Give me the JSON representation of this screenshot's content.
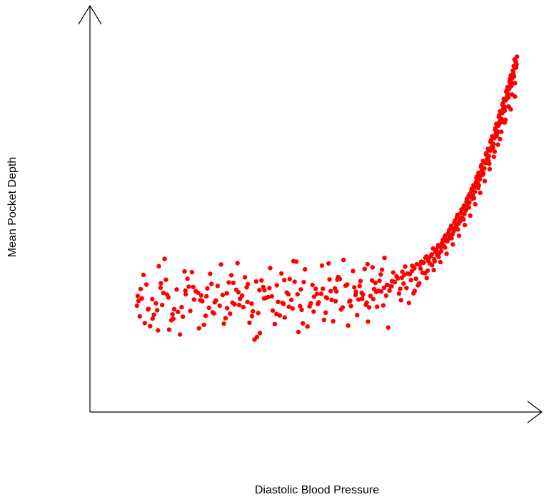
{
  "chart_data": {
    "type": "scatter",
    "title": "",
    "xlabel": "Diastolic Blood Pressure",
    "ylabel": "Mean Pocket Depth",
    "xlim": [
      0,
      100
    ],
    "ylim": [
      0,
      100
    ],
    "grid": false,
    "point_color": "#ff0000",
    "axis_color": "#000000",
    "series": [
      {
        "name": "",
        "x": [
          7.2,
          9.5,
          12.1,
          14.8,
          18.3,
          21.4,
          24.6,
          27.9,
          30.3,
          33.7,
          36.5,
          39.8,
          42.6,
          45.3,
          48.9,
          51.7,
          54.2,
          57.6,
          60.1,
          62.5,
          64.8,
          67.4,
          69.9,
          72.3,
          74.6,
          76.8,
          78.5,
          80.1,
          81.6,
          83.2,
          84.7,
          86.1,
          87.4,
          88.6,
          89.8,
          90.9,
          92.1,
          93.2,
          94.1,
          95.0,
          96.0,
          96.9,
          97.6,
          98.3,
          8.1,
          11.3,
          13.6,
          16.2,
          19.7,
          23.0,
          25.8,
          29.4,
          32.1,
          35.2,
          38.0,
          41.3,
          44.1,
          47.0,
          50.4,
          53.1,
          55.8,
          58.9,
          61.2,
          63.6,
          66.1,
          68.5,
          71.0,
          73.4,
          75.7,
          77.6,
          79.3,
          80.9,
          82.4,
          83.9,
          85.4,
          86.8,
          88.0,
          89.2,
          90.3,
          91.5,
          92.6,
          93.7,
          94.6,
          95.5,
          96.4,
          97.2,
          98.0,
          98.7,
          7.6,
          10.4,
          12.9,
          15.5,
          19.0,
          22.2,
          25.2,
          28.6,
          31.2,
          34.4,
          37.3,
          40.5,
          43.4,
          46.2,
          49.6,
          52.4,
          55.0,
          58.2,
          60.7,
          63.0,
          65.5,
          67.9,
          70.5,
          72.9,
          75.1,
          77.2,
          78.9,
          80.5,
          82.0,
          83.5,
          85.0,
          86.4,
          87.7,
          88.9,
          90.1,
          91.2,
          92.4,
          93.4,
          94.4,
          95.2,
          96.2,
          97.0,
          97.8,
          98.5,
          8.8,
          11.8,
          14.2,
          17.1,
          20.5,
          23.8,
          26.7,
          30.0,
          32.9,
          36.0,
          38.9,
          42.1,
          44.8,
          47.8,
          51.1,
          53.7,
          56.5,
          59.4,
          61.8,
          64.1,
          66.7,
          69.1,
          71.6,
          74.0,
          76.2,
          78.0,
          79.7,
          81.3,
          82.8,
          84.3,
          85.8,
          87.1,
          88.3,
          89.5,
          90.6,
          91.8,
          92.9,
          93.9,
          94.8,
          95.7,
          96.6,
          97.4,
          98.1,
          98.9,
          7.9,
          10.9,
          13.3,
          16.8,
          20.1,
          22.7,
          26.3,
          29.0,
          31.7,
          34.9,
          37.7,
          40.9,
          43.8,
          46.6,
          50.0,
          52.8,
          55.4,
          58.5,
          61.0,
          63.3,
          65.8,
          68.2,
          70.8,
          73.1,
          75.4,
          77.4,
          79.1,
          80.7,
          82.2,
          83.7,
          85.2,
          86.6,
          87.8,
          89.0,
          90.2,
          91.4,
          92.5,
          93.5,
          94.5,
          95.4,
          96.3,
          97.1,
          97.9,
          98.6,
          9.1,
          12.5,
          15.0,
          18.7,
          21.9,
          24.9,
          28.2,
          31.5,
          34.0,
          36.9,
          39.4,
          42.9,
          45.7,
          48.4,
          51.9,
          54.6,
          57.1,
          60.4,
          62.9,
          65.2,
          67.0,
          69.5,
          72.0,
          74.3,
          76.5,
          78.2,
          79.9,
          81.5,
          83.0,
          84.5,
          86.0,
          87.3,
          88.5,
          89.7,
          90.8,
          92.0,
          93.0,
          94.0,
          94.9,
          95.8,
          96.7,
          97.5,
          98.2,
          99.0,
          10.0,
          13.9,
          17.6,
          21.0,
          24.2,
          27.5,
          30.8,
          33.3,
          36.2,
          39.2,
          42.4,
          45.0,
          47.5,
          50.7,
          53.5,
          56.2,
          59.7,
          62.2,
          64.5,
          66.4,
          68.8,
          71.3,
          73.7,
          75.9,
          77.8,
          79.5,
          81.1,
          82.6,
          84.1,
          85.6,
          86.9,
          88.1,
          89.3,
          90.4,
          91.6,
          92.7,
          93.8,
          94.7,
          95.6,
          96.5,
          97.3,
          98.4,
          8.4,
          12.3,
          16.0,
          19.4,
          23.4,
          26.0,
          29.7,
          32.6,
          35.6,
          38.4,
          41.7,
          44.5,
          47.3,
          50.9,
          54.0,
          56.9,
          60.0,
          62.7,
          65.0,
          67.6,
          70.2,
          72.6,
          74.8,
          76.9,
          78.7,
          80.3,
          81.8,
          83.4,
          84.9,
          86.3,
          87.5,
          88.8,
          90.0,
          91.1,
          92.2,
          93.3,
          94.3,
          95.3,
          96.1,
          96.8,
          97.7,
          98.8,
          7.4,
          9.9,
          13.0,
          15.8,
          18.9,
          22.5,
          25.5,
          28.9,
          31.9,
          35.0,
          37.9,
          41.0,
          43.9,
          46.8,
          49.9,
          52.9,
          55.6,
          58.7,
          61.5,
          64.3,
          66.9,
          69.3,
          71.8,
          74.2,
          76.4,
          78.4,
          80.0,
          81.7,
          83.1,
          84.6,
          86.2,
          87.6,
          89.1,
          90.5,
          91.9,
          93.1,
          94.2,
          95.1,
          96.0,
          97.0,
          97.9,
          11.0,
          14.5,
          18.0,
          20.8,
          24.0,
          27.2,
          30.5,
          33.9,
          36.8,
          40.0,
          42.8,
          46.0,
          49.2,
          52.1,
          55.2,
          58.0,
          61.6,
          64.0,
          66.2,
          68.7,
          71.2,
          73.6,
          75.5,
          77.1,
          79.0,
          80.6,
          82.3,
          83.8,
          85.3,
          86.7,
          88.2,
          89.6,
          90.7,
          92.3,
          93.6,
          94.9,
          96.0,
          97.5,
          98.5
        ],
        "y": [
          24.1,
          30.2,
          22.8,
          26.5,
          20.9,
          28.3,
          23.5,
          27.2,
          25.0,
          29.4,
          22.0,
          26.8,
          24.6,
          31.0,
          23.9,
          27.5,
          25.8,
          29.9,
          28.1,
          24.4,
          30.7,
          27.0,
          32.6,
          29.2,
          31.9,
          33.5,
          35.8,
          38.2,
          40.9,
          43.6,
          46.1,
          49.0,
          52.5,
          55.2,
          58.8,
          62.3,
          66.0,
          69.7,
          73.1,
          76.9,
          80.4,
          84.2,
          87.5,
          90.3,
          28.9,
          21.5,
          27.8,
          23.1,
          29.6,
          25.4,
          21.9,
          30.8,
          26.1,
          22.5,
          28.6,
          25.2,
          31.8,
          22.9,
          29.0,
          26.3,
          32.4,
          24.0,
          31.2,
          26.9,
          33.1,
          29.7,
          25.7,
          31.5,
          34.8,
          37.0,
          39.6,
          42.2,
          45.0,
          48.1,
          50.8,
          54.1,
          57.4,
          60.9,
          64.2,
          67.8,
          71.4,
          74.9,
          78.6,
          82.1,
          85.9,
          88.8,
          92.0,
          94.5,
          25.5,
          18.2,
          29.3,
          19.9,
          27.4,
          17.6,
          30.4,
          20.5,
          28.7,
          19.2,
          31.4,
          18.8,
          27.9,
          16.5,
          30.1,
          20.0,
          29.1,
          18.4,
          25.9,
          19.5,
          28.4,
          17.8,
          27.6,
          24.9,
          30.0,
          32.1,
          34.4,
          36.7,
          39.1,
          41.8,
          44.3,
          47.4,
          50.1,
          53.4,
          56.7,
          60.1,
          63.5,
          67.1,
          70.6,
          74.3,
          77.8,
          81.6,
          85.1,
          88.4,
          33.0,
          24.8,
          31.6,
          22.3,
          33.8,
          21.2,
          29.8,
          32.9,
          23.7,
          31.1,
          26.6,
          33.4,
          23.3,
          34.6,
          25.1,
          31.7,
          23.0,
          34.1,
          27.3,
          35.2,
          24.2,
          33.7,
          30.5,
          27.7,
          33.6,
          36.2,
          38.7,
          41.4,
          44.0,
          47.0,
          49.5,
          52.9,
          56.0,
          59.5,
          62.9,
          66.5,
          70.1,
          73.8,
          77.3,
          81.0,
          84.6,
          88.0,
          91.2,
          93.8,
          21.0,
          26.0,
          24.3,
          28.8,
          22.6,
          27.1,
          25.6,
          23.4,
          28.0,
          24.7,
          29.5,
          21.7,
          27.4,
          24.0,
          26.7,
          22.1,
          28.2,
          25.3,
          29.8,
          23.6,
          31.3,
          28.5,
          29.0,
          33.2,
          30.6,
          34.2,
          36.9,
          39.9,
          42.7,
          45.6,
          48.5,
          51.6,
          55.5,
          58.3,
          61.7,
          65.3,
          68.9,
          72.5,
          76.1,
          79.7,
          83.4,
          86.7,
          89.9,
          92.8,
          19.1,
          35.5,
          17.2,
          34.0,
          27.9,
          33.3,
          18.9,
          36.4,
          30.3,
          16.2,
          35.0,
          20.7,
          36.8,
          18.1,
          35.7,
          19.6,
          37.3,
          21.4,
          36.1,
          23.8,
          37.9,
          30.9,
          35.4,
          28.4,
          36.6,
          38.5,
          41.1,
          43.9,
          46.6,
          49.7,
          52.2,
          55.8,
          58.9,
          62.5,
          65.9,
          69.4,
          73.0,
          76.6,
          80.2,
          83.8,
          87.2,
          90.6,
          93.3,
          96.0,
          23.2,
          37.6,
          15.8,
          25.9,
          29.1,
          36.0,
          24.5,
          32.3,
          15.1,
          29.2,
          24.9,
          37.0,
          30.9,
          27.5,
          36.3,
          31.8,
          29.4,
          34.7,
          28.9,
          34.5,
          31.2,
          33.9,
          35.6,
          36.8,
          38.0,
          40.2,
          43.1,
          45.9,
          48.8,
          51.9,
          54.9,
          57.9,
          61.4,
          64.7,
          68.2,
          71.9,
          75.4,
          79.1,
          82.6,
          86.2,
          89.6,
          95.2,
          26.2,
          17.0,
          20.3,
          31.9,
          18.6,
          25.1,
          21.8,
          27.0,
          14.3,
          26.4,
          21.3,
          25.8,
          19.0,
          24.6,
          28.3,
          23.6,
          27.2,
          25.0,
          28.1,
          30.1,
          32.0,
          33.4,
          36.1,
          37.9,
          40.6,
          39.4,
          42.9,
          44.7,
          47.8,
          50.6,
          53.9,
          57.0,
          60.6,
          63.8,
          67.3,
          70.8,
          74.4,
          78.0,
          81.5,
          85.3,
          88.6,
          92.9,
          26.9,
          23.0,
          30.6,
          21.6,
          28.5,
          25.7,
          22.2,
          27.7,
          24.3,
          21.1,
          26.2,
          30.0,
          23.8,
          28.8,
          22.4,
          26.5,
          31.6,
          25.5,
          27.8,
          26.0,
          29.3,
          31.0,
          33.0,
          34.9,
          36.5,
          38.9,
          41.6,
          44.4,
          47.2,
          50.3,
          53.0,
          56.4,
          59.8,
          63.1,
          66.7,
          70.3,
          73.9,
          77.5,
          81.2,
          84.9,
          88.2,
          20.4,
          27.3,
          23.7,
          29.5,
          26.8,
          24.1,
          30.7,
          25.2,
          28.6,
          22.7,
          31.5,
          27.4,
          24.8,
          29.0,
          25.4,
          30.2,
          26.1,
          31.4,
          28.2,
          29.7,
          32.2,
          34.1,
          35.9,
          38.3,
          37.5,
          41.0,
          43.3,
          46.4,
          49.3,
          52.0,
          55.0,
          58.1,
          61.9,
          65.1,
          68.6,
          72.2,
          77.0,
          80.8,
          84.5
        ]
      }
    ]
  }
}
